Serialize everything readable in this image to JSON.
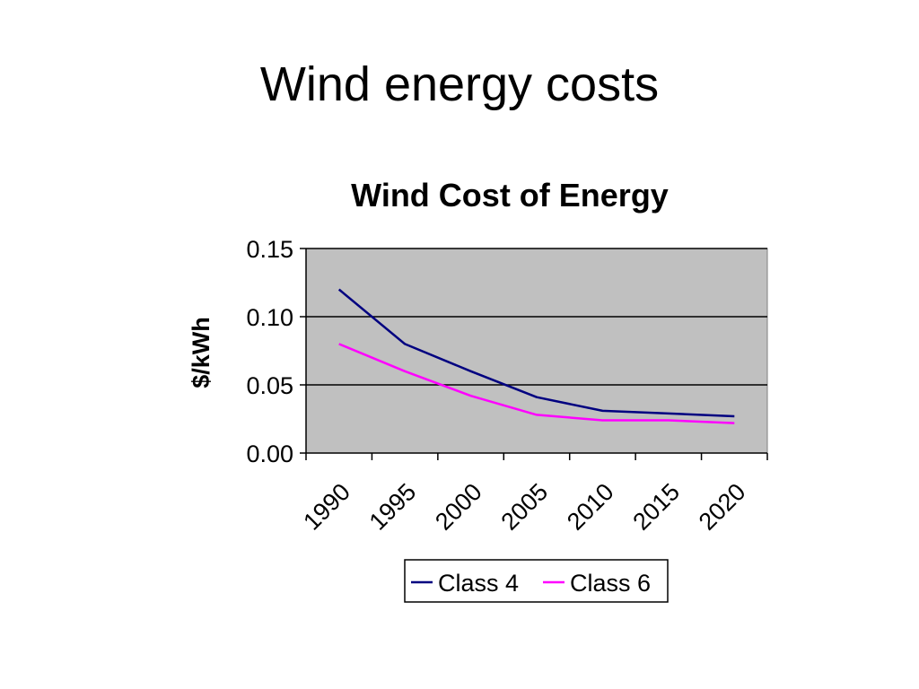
{
  "slide": {
    "title": "Wind energy costs"
  },
  "chart_data": {
    "type": "line",
    "title": "Wind Cost of Energy",
    "xlabel": "",
    "ylabel": "$/kWh",
    "xlim": [
      1990,
      2025
    ],
    "ylim": [
      0,
      0.15
    ],
    "x_ticks": [
      "1990",
      "1995",
      "2000",
      "2005",
      "2010",
      "2015",
      "2020"
    ],
    "y_ticks": [
      "0.00",
      "0.05",
      "0.10",
      "0.15"
    ],
    "grid": "horizontal",
    "plot_background": "#c0c0c0",
    "legend_position": "bottom",
    "series": [
      {
        "name": "Class 4",
        "color": "#000080",
        "points": [
          [
            1992.5,
            0.12
          ],
          [
            1997.5,
            0.08
          ],
          [
            2002.5,
            0.06
          ],
          [
            2007.5,
            0.041
          ],
          [
            2012.5,
            0.031
          ],
          [
            2017.5,
            0.029
          ],
          [
            2022.5,
            0.027
          ]
        ]
      },
      {
        "name": "Class 6",
        "color": "#ff00ff",
        "points": [
          [
            1992.5,
            0.08
          ],
          [
            1997.5,
            0.06
          ],
          [
            2002.5,
            0.042
          ],
          [
            2007.5,
            0.028
          ],
          [
            2012.5,
            0.024
          ],
          [
            2017.5,
            0.024
          ],
          [
            2022.5,
            0.022
          ]
        ]
      }
    ]
  }
}
